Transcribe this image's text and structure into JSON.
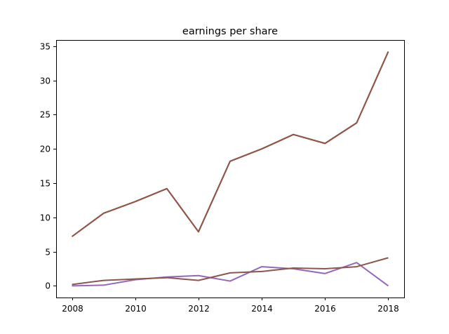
{
  "chart_data": {
    "type": "line",
    "title": "earnings per share",
    "xlabel": "",
    "ylabel": "",
    "x": [
      2008,
      2009,
      2010,
      2011,
      2012,
      2013,
      2014,
      2015,
      2016,
      2017,
      2018
    ],
    "xticks": [
      "2008",
      "2010",
      "2012",
      "2014",
      "2016",
      "2018"
    ],
    "yticks": [
      "0",
      "5",
      "10",
      "15",
      "20",
      "25",
      "30",
      "35"
    ],
    "xlim": [
      2007.5,
      2018.5
    ],
    "ylim": [
      -1.7,
      35.9
    ],
    "grid": false,
    "legend": "none",
    "series": [
      {
        "color": "#d62728",
        "values": [
          7.2,
          10.6,
          12.3,
          14.2,
          7.9,
          18.2,
          20.0,
          22.1,
          20.8,
          23.8,
          34.2
        ]
      },
      {
        "color": "#8c564b",
        "values": [
          7.2,
          10.6,
          12.3,
          14.2,
          7.9,
          18.2,
          20.0,
          22.1,
          20.8,
          23.8,
          34.2
        ]
      },
      {
        "color": "#9467bd",
        "values": [
          0.0,
          0.1,
          0.9,
          1.3,
          1.5,
          0.7,
          2.8,
          2.5,
          1.8,
          3.4,
          0.0
        ]
      },
      {
        "color": "#8c564b",
        "values": [
          0.2,
          0.8,
          1.0,
          1.2,
          0.8,
          1.9,
          2.1,
          2.6,
          2.5,
          2.8,
          4.1
        ]
      }
    ]
  }
}
